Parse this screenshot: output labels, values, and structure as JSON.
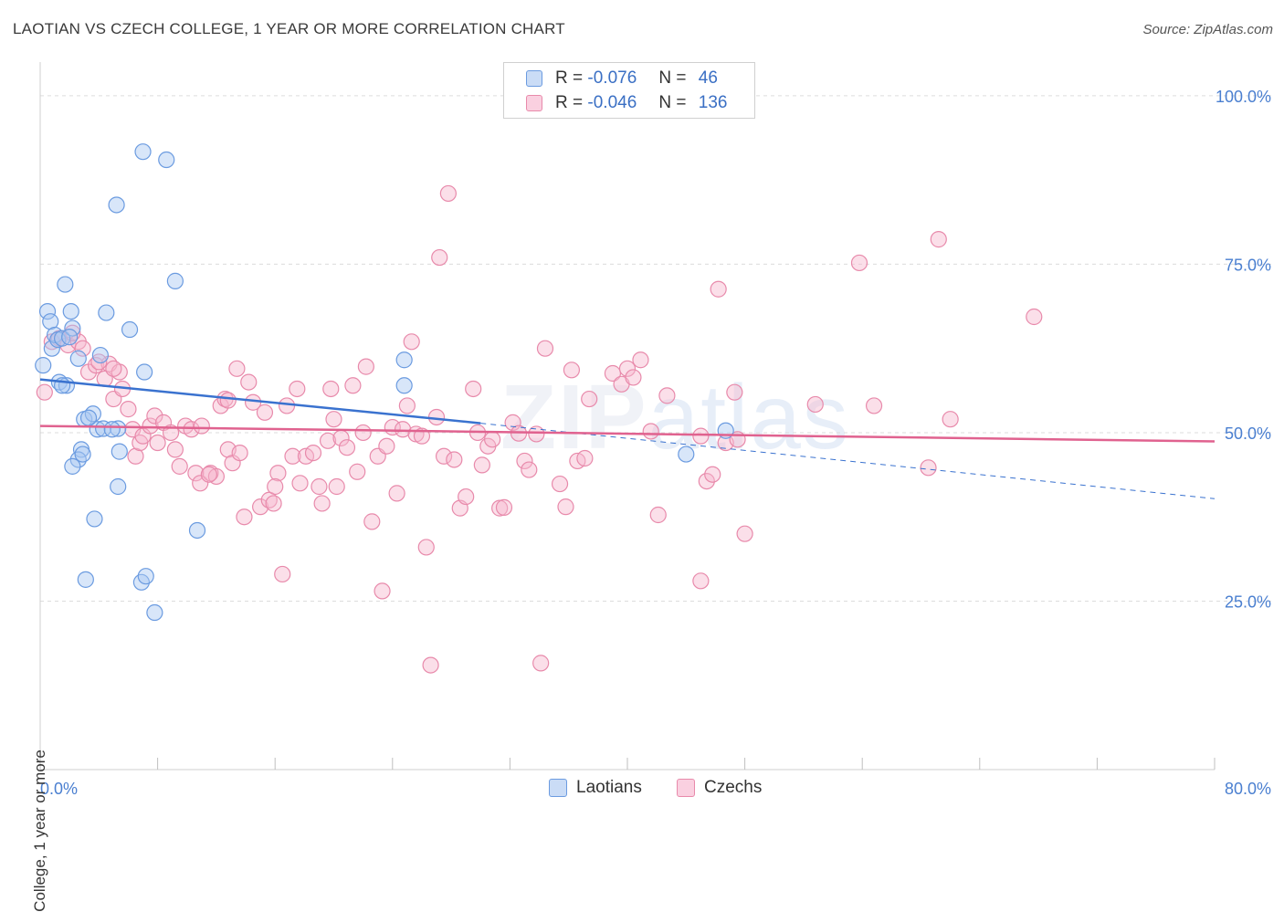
{
  "header": {
    "title": "LAOTIAN VS CZECH COLLEGE, 1 YEAR OR MORE CORRELATION CHART",
    "source": "Source: ZipAtlas.com"
  },
  "watermark": {
    "bold": "ZIP",
    "thin": "atlas"
  },
  "legend": {
    "r_label": "R =",
    "n_label": "N =",
    "rows": [
      {
        "r": "-0.076",
        "n": "46",
        "fill": "#a9c8f2",
        "stroke": "#6b9be0"
      },
      {
        "r": "-0.046",
        "n": "136",
        "fill": "#f7b9cf",
        "stroke": "#e88aab"
      }
    ]
  },
  "bottom_legend": [
    {
      "label": "Laotians",
      "fill": "#a9c8f2",
      "stroke": "#6b9be0"
    },
    {
      "label": "Czechs",
      "fill": "#f7b9cf",
      "stroke": "#e88aab"
    }
  ],
  "chart_data": {
    "type": "scatter",
    "title": "LAOTIAN VS CZECH COLLEGE, 1 YEAR OR MORE CORRELATION CHART",
    "ylabel": "College, 1 year or more",
    "xlim": [
      0,
      80
    ],
    "ylim": [
      0,
      105
    ],
    "x_tick_labels": [
      {
        "value": 0,
        "label": "0.0%"
      },
      {
        "value": 80,
        "label": "80.0%"
      }
    ],
    "y_tick_labels": [
      {
        "value": 25,
        "label": "25.0%"
      },
      {
        "value": 50,
        "label": "50.0%"
      },
      {
        "value": 75,
        "label": "75.0%"
      },
      {
        "value": 100,
        "label": "100.0%"
      }
    ],
    "grid": "horizontal dashed",
    "colors": {
      "laotians": "#6b9be0",
      "czechs": "#e88aab",
      "laotians_line": "#3a72cf",
      "czechs_line": "#e0628f"
    },
    "series": [
      {
        "name": "Laotians",
        "r": -0.076,
        "n": 46,
        "trend": {
          "x0": 0,
          "y0": 57.9,
          "x1": 30,
          "y1": 51.4,
          "dashed_to_x": 80,
          "dashed_to_y": 40.2
        },
        "points": [
          [
            0.2,
            60.0
          ],
          [
            0.5,
            68.0
          ],
          [
            0.7,
            66.5
          ],
          [
            0.8,
            62.5
          ],
          [
            1.0,
            64.5
          ],
          [
            1.2,
            63.8
          ],
          [
            1.5,
            64.0
          ],
          [
            1.7,
            72.0
          ],
          [
            1.3,
            57.5
          ],
          [
            1.8,
            57.0
          ],
          [
            2.1,
            68.0
          ],
          [
            2.2,
            65.5
          ],
          [
            2.6,
            61.0
          ],
          [
            3.0,
            52.0
          ],
          [
            2.8,
            47.5
          ],
          [
            2.6,
            46.0
          ],
          [
            2.2,
            45.0
          ],
          [
            2.9,
            46.8
          ],
          [
            3.6,
            52.8
          ],
          [
            3.9,
            50.5
          ],
          [
            4.3,
            50.6
          ],
          [
            4.1,
            61.5
          ],
          [
            4.5,
            67.8
          ],
          [
            5.2,
            83.8
          ],
          [
            6.1,
            65.3
          ],
          [
            7.0,
            91.7
          ],
          [
            8.6,
            90.5
          ],
          [
            9.2,
            72.5
          ],
          [
            7.1,
            59.0
          ],
          [
            5.3,
            50.6
          ],
          [
            5.4,
            47.2
          ],
          [
            5.3,
            42.0
          ],
          [
            3.7,
            37.2
          ],
          [
            3.1,
            28.2
          ],
          [
            6.9,
            27.8
          ],
          [
            7.2,
            28.7
          ],
          [
            7.8,
            23.3
          ],
          [
            10.7,
            35.5
          ],
          [
            2.0,
            64.2
          ],
          [
            1.5,
            57.0
          ],
          [
            3.3,
            52.2
          ],
          [
            4.9,
            50.5
          ],
          [
            24.8,
            60.8
          ],
          [
            24.8,
            57.0
          ],
          [
            44.0,
            46.8
          ],
          [
            46.7,
            50.3
          ]
        ]
      },
      {
        "name": "Czechs",
        "r": -0.046,
        "n": 136,
        "trend": {
          "x0": 0,
          "y0": 51.0,
          "x1": 80,
          "y1": 48.7
        },
        "points": [
          [
            0.3,
            56.0
          ],
          [
            0.8,
            63.5
          ],
          [
            1.3,
            64.0
          ],
          [
            1.9,
            63.0
          ],
          [
            2.6,
            63.5
          ],
          [
            2.9,
            62.5
          ],
          [
            3.3,
            59.0
          ],
          [
            3.8,
            60.0
          ],
          [
            4.4,
            58.0
          ],
          [
            4.7,
            60.2
          ],
          [
            5.0,
            55.0
          ],
          [
            5.4,
            59.0
          ],
          [
            5.6,
            56.5
          ],
          [
            6.0,
            53.5
          ],
          [
            6.3,
            50.5
          ],
          [
            6.5,
            46.5
          ],
          [
            6.8,
            48.5
          ],
          [
            7.0,
            49.5
          ],
          [
            7.5,
            51.0
          ],
          [
            7.8,
            52.5
          ],
          [
            8.0,
            48.5
          ],
          [
            8.4,
            51.5
          ],
          [
            8.9,
            50.0
          ],
          [
            9.2,
            47.5
          ],
          [
            9.5,
            45.0
          ],
          [
            9.9,
            51.0
          ],
          [
            10.3,
            50.5
          ],
          [
            10.6,
            44.0
          ],
          [
            10.9,
            42.5
          ],
          [
            11.0,
            51.0
          ],
          [
            11.6,
            44.0
          ],
          [
            12.0,
            43.5
          ],
          [
            12.3,
            54.0
          ],
          [
            12.6,
            55.0
          ],
          [
            12.8,
            47.5
          ],
          [
            13.1,
            45.5
          ],
          [
            13.4,
            59.5
          ],
          [
            13.6,
            47.0
          ],
          [
            13.9,
            37.5
          ],
          [
            14.2,
            57.5
          ],
          [
            14.5,
            54.5
          ],
          [
            15.0,
            39.0
          ],
          [
            15.3,
            53.0
          ],
          [
            15.6,
            40.0
          ],
          [
            15.9,
            39.5
          ],
          [
            16.2,
            44.0
          ],
          [
            16.5,
            29.0
          ],
          [
            16.8,
            54.0
          ],
          [
            17.2,
            46.5
          ],
          [
            17.5,
            56.5
          ],
          [
            17.7,
            42.5
          ],
          [
            18.1,
            46.5
          ],
          [
            18.6,
            47.0
          ],
          [
            19.0,
            42.0
          ],
          [
            19.2,
            39.5
          ],
          [
            19.6,
            48.8
          ],
          [
            19.8,
            56.5
          ],
          [
            20.2,
            42.0
          ],
          [
            20.5,
            49.2
          ],
          [
            20.9,
            47.8
          ],
          [
            21.3,
            57.0
          ],
          [
            21.6,
            44.2
          ],
          [
            22.0,
            50.0
          ],
          [
            22.2,
            59.8
          ],
          [
            22.6,
            36.8
          ],
          [
            23.0,
            46.5
          ],
          [
            23.3,
            26.5
          ],
          [
            23.6,
            48.0
          ],
          [
            24.0,
            50.8
          ],
          [
            24.3,
            41.0
          ],
          [
            24.7,
            50.5
          ],
          [
            25.0,
            54.0
          ],
          [
            25.3,
            63.5
          ],
          [
            25.6,
            49.8
          ],
          [
            26.0,
            49.5
          ],
          [
            26.3,
            33.0
          ],
          [
            26.6,
            15.5
          ],
          [
            27.2,
            76.0
          ],
          [
            27.5,
            46.5
          ],
          [
            27.8,
            85.5
          ],
          [
            28.2,
            46.0
          ],
          [
            28.6,
            38.8
          ],
          [
            29.0,
            40.5
          ],
          [
            29.5,
            56.5
          ],
          [
            29.8,
            50.0
          ],
          [
            30.1,
            45.2
          ],
          [
            30.5,
            48.0
          ],
          [
            30.8,
            49.0
          ],
          [
            31.3,
            38.8
          ],
          [
            31.6,
            38.9
          ],
          [
            32.2,
            51.5
          ],
          [
            32.6,
            49.9
          ],
          [
            33.0,
            45.8
          ],
          [
            33.3,
            44.5
          ],
          [
            33.8,
            49.8
          ],
          [
            34.1,
            15.8
          ],
          [
            34.4,
            62.5
          ],
          [
            35.4,
            42.4
          ],
          [
            35.8,
            39.0
          ],
          [
            36.2,
            59.3
          ],
          [
            36.6,
            45.8
          ],
          [
            37.1,
            46.2
          ],
          [
            39.0,
            58.8
          ],
          [
            39.6,
            57.2
          ],
          [
            40.0,
            59.5
          ],
          [
            40.4,
            58.2
          ],
          [
            40.9,
            60.8
          ],
          [
            41.6,
            50.2
          ],
          [
            42.1,
            37.8
          ],
          [
            42.7,
            55.5
          ],
          [
            45.0,
            49.5
          ],
          [
            45.4,
            42.8
          ],
          [
            45.8,
            43.8
          ],
          [
            46.2,
            71.3
          ],
          [
            47.3,
            56.0
          ],
          [
            48.0,
            35.0
          ],
          [
            46.7,
            48.5
          ],
          [
            47.5,
            49.0
          ],
          [
            52.8,
            54.2
          ],
          [
            55.8,
            75.2
          ],
          [
            56.8,
            54.0
          ],
          [
            60.5,
            44.8
          ],
          [
            61.2,
            78.7
          ],
          [
            62.0,
            52.0
          ],
          [
            67.7,
            67.2
          ],
          [
            4.0,
            60.5
          ],
          [
            5.0,
            59.5
          ],
          [
            2.2,
            64.8
          ],
          [
            16.0,
            42.0
          ],
          [
            20.0,
            52.0
          ],
          [
            27.0,
            52.3
          ],
          [
            11.5,
            43.8
          ],
          [
            45.0,
            28.0
          ],
          [
            12.8,
            54.8
          ],
          [
            37.4,
            55.0
          ]
        ]
      }
    ]
  }
}
